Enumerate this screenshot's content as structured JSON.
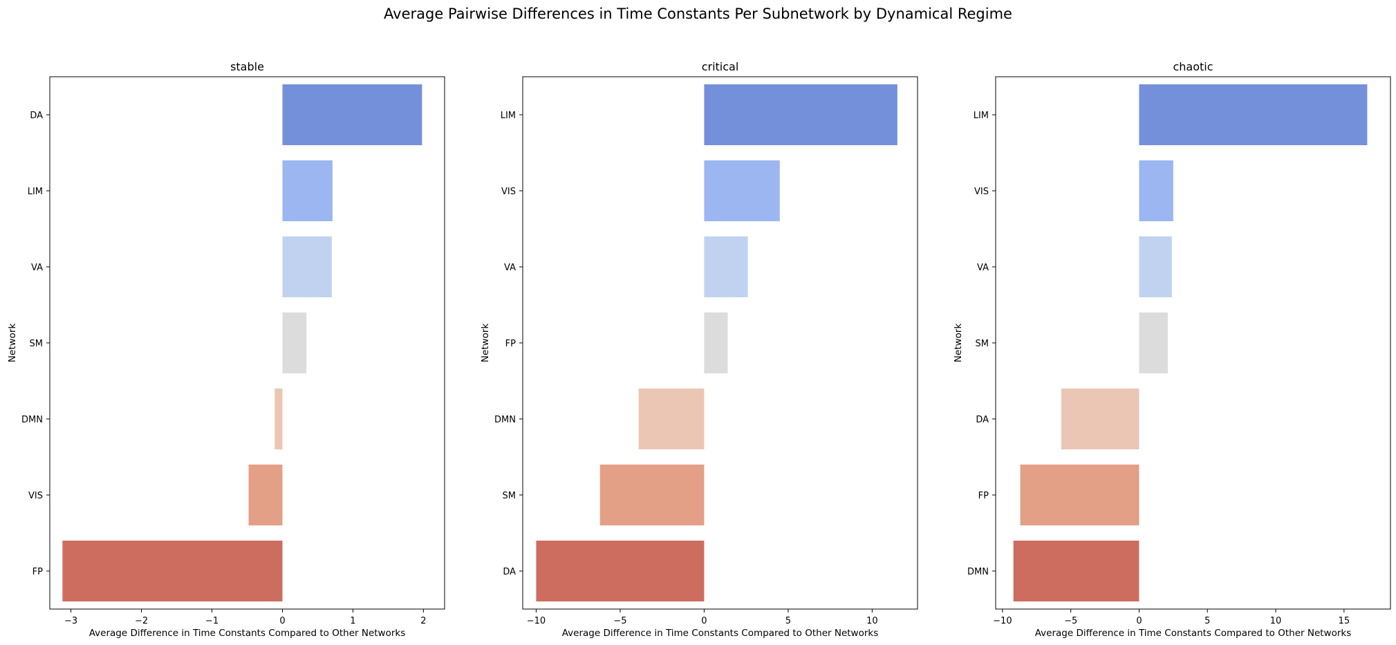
{
  "figure": {
    "suptitle": "Average Pairwise Differences in Time Constants Per Subnetwork by Dynamical Regime"
  },
  "palette": [
    "#7590db",
    "#9cb6f2",
    "#c1d2f1",
    "#dcdcdc",
    "#ebc6b4",
    "#e49f87",
    "#cd6d60"
  ],
  "chart_data": [
    {
      "type": "bar",
      "orientation": "horizontal",
      "title": "stable",
      "xlabel": "Average Difference in Time Constants Compared to Other Networks",
      "ylabel": "Network",
      "categories": [
        "DA",
        "LIM",
        "VA",
        "SM",
        "DMN",
        "VIS",
        "FP"
      ],
      "values": [
        1.98,
        0.71,
        0.7,
        0.34,
        -0.11,
        -0.48,
        -3.12
      ],
      "xlim": [
        -3.3,
        2.3
      ],
      "xticks": [
        -3,
        -2,
        -1,
        0,
        1,
        2
      ],
      "xtick_labels": [
        "−3",
        "−2",
        "−1",
        "0",
        "1",
        "2"
      ],
      "grid": false
    },
    {
      "type": "bar",
      "orientation": "horizontal",
      "title": "critical",
      "xlabel": "Average Difference in Time Constants Compared to Other Networks",
      "ylabel": "Network",
      "categories": [
        "LIM",
        "VIS",
        "VA",
        "FP",
        "DMN",
        "SM",
        "DA"
      ],
      "values": [
        11.5,
        4.5,
        2.6,
        1.4,
        -3.9,
        -6.2,
        -10.0
      ],
      "xlim": [
        -10.8,
        12.7
      ],
      "xticks": [
        -10,
        -5,
        0,
        5,
        10
      ],
      "xtick_labels": [
        "−10",
        "−5",
        "0",
        "5",
        "10"
      ],
      "grid": false
    },
    {
      "type": "bar",
      "orientation": "horizontal",
      "title": "chaotic",
      "xlabel": "Average Difference in Time Constants Compared to Other Networks",
      "ylabel": "Network",
      "categories": [
        "LIM",
        "VIS",
        "VA",
        "SM",
        "DA",
        "FP",
        "DMN"
      ],
      "values": [
        16.7,
        2.5,
        2.4,
        2.1,
        -5.7,
        -8.7,
        -9.2
      ],
      "xlim": [
        -10.5,
        18.4
      ],
      "xticks": [
        -10,
        -5,
        0,
        5,
        10,
        15
      ],
      "xtick_labels": [
        "−10",
        "−5",
        "0",
        "5",
        "10",
        "15"
      ],
      "grid": false
    }
  ]
}
